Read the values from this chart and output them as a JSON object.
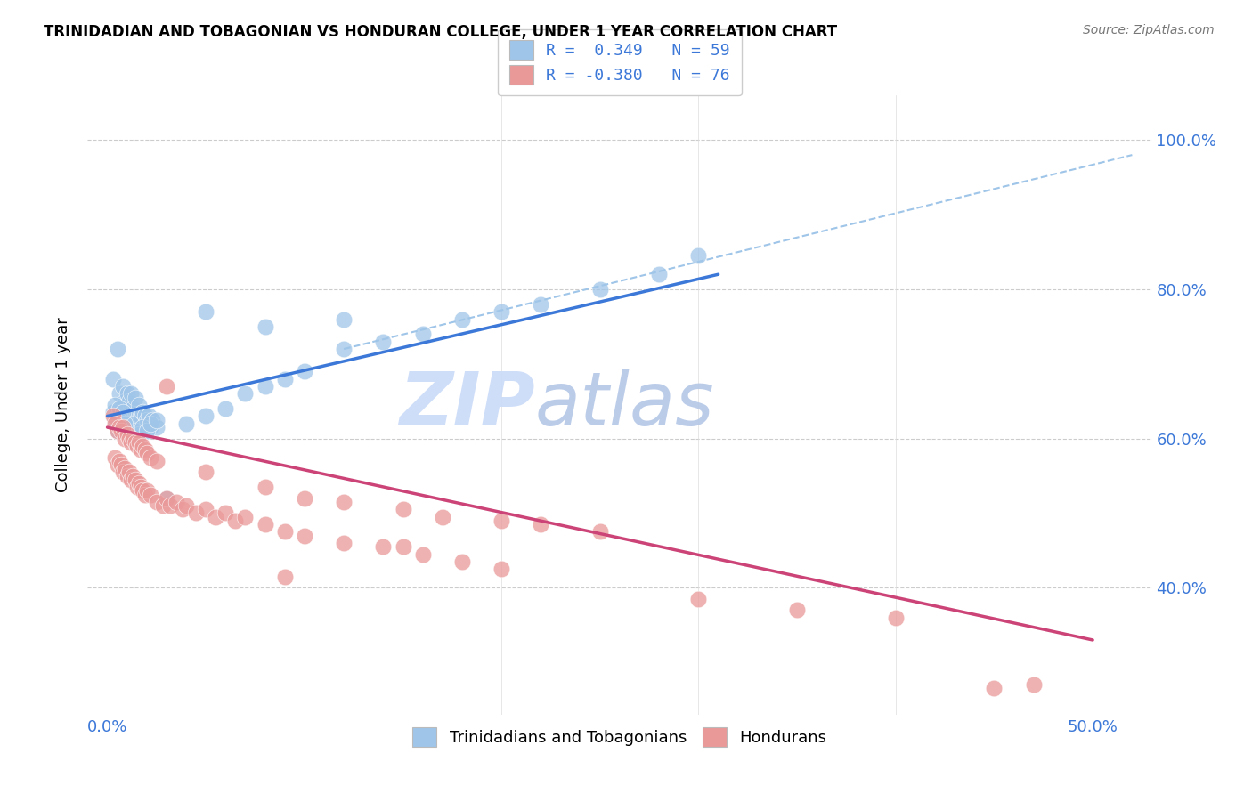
{
  "title": "TRINIDADIAN AND TOBAGONIAN VS HONDURAN COLLEGE, UNDER 1 YEAR CORRELATION CHART",
  "source": "Source: ZipAtlas.com",
  "x_tick_vals": [
    0.0,
    0.1,
    0.2,
    0.3,
    0.4,
    0.5
  ],
  "x_tick_labels": [
    "0.0%",
    "",
    "",
    "",
    "",
    "50.0%"
  ],
  "y_tick_vals": [
    0.4,
    0.6,
    0.8,
    1.0
  ],
  "y_tick_labels": [
    "40.0%",
    "60.0%",
    "80.0%",
    "100.0%"
  ],
  "ylabel_label": "College, Under 1 year",
  "legend_label1": "Trinidadians and Tobagonians",
  "legend_label2": "Hondurans",
  "R1": "0.349",
  "N1": "59",
  "R2": "-0.380",
  "N2": "76",
  "blue_color": "#9fc5e8",
  "pink_color": "#ea9999",
  "blue_line_color": "#3c78d8",
  "pink_line_color": "#cc4477",
  "dashed_line_color": "#9fc5e8",
  "watermark_zip_color": "#c9daf8",
  "watermark_atlas_color": "#b4c7e7",
  "blue_scatter": [
    [
      0.003,
      0.68
    ],
    [
      0.005,
      0.72
    ],
    [
      0.006,
      0.66
    ],
    [
      0.007,
      0.64
    ],
    [
      0.008,
      0.67
    ],
    [
      0.009,
      0.65
    ],
    [
      0.01,
      0.66
    ],
    [
      0.011,
      0.65
    ],
    [
      0.012,
      0.66
    ],
    [
      0.013,
      0.64
    ],
    [
      0.014,
      0.655
    ],
    [
      0.015,
      0.63
    ],
    [
      0.016,
      0.645
    ],
    [
      0.017,
      0.63
    ],
    [
      0.018,
      0.635
    ],
    [
      0.019,
      0.63
    ],
    [
      0.02,
      0.625
    ],
    [
      0.021,
      0.63
    ],
    [
      0.022,
      0.615
    ],
    [
      0.023,
      0.625
    ],
    [
      0.025,
      0.615
    ],
    [
      0.006,
      0.63
    ],
    [
      0.008,
      0.62
    ],
    [
      0.01,
      0.615
    ],
    [
      0.012,
      0.62
    ],
    [
      0.014,
      0.61
    ],
    [
      0.016,
      0.605
    ],
    [
      0.018,
      0.615
    ],
    [
      0.02,
      0.61
    ],
    [
      0.022,
      0.62
    ],
    [
      0.004,
      0.625
    ],
    [
      0.003,
      0.635
    ],
    [
      0.005,
      0.61
    ],
    [
      0.007,
      0.615
    ],
    [
      0.009,
      0.62
    ],
    [
      0.004,
      0.645
    ],
    [
      0.006,
      0.64
    ],
    [
      0.008,
      0.635
    ],
    [
      0.025,
      0.625
    ],
    [
      0.04,
      0.62
    ],
    [
      0.05,
      0.63
    ],
    [
      0.06,
      0.64
    ],
    [
      0.07,
      0.66
    ],
    [
      0.08,
      0.67
    ],
    [
      0.09,
      0.68
    ],
    [
      0.1,
      0.69
    ],
    [
      0.12,
      0.72
    ],
    [
      0.14,
      0.73
    ],
    [
      0.16,
      0.74
    ],
    [
      0.18,
      0.76
    ],
    [
      0.2,
      0.77
    ],
    [
      0.22,
      0.78
    ],
    [
      0.25,
      0.8
    ],
    [
      0.28,
      0.82
    ],
    [
      0.3,
      0.845
    ],
    [
      0.05,
      0.77
    ],
    [
      0.08,
      0.75
    ],
    [
      0.12,
      0.76
    ],
    [
      0.03,
      0.52
    ]
  ],
  "pink_scatter": [
    [
      0.003,
      0.63
    ],
    [
      0.004,
      0.62
    ],
    [
      0.005,
      0.61
    ],
    [
      0.006,
      0.615
    ],
    [
      0.007,
      0.61
    ],
    [
      0.008,
      0.615
    ],
    [
      0.009,
      0.6
    ],
    [
      0.01,
      0.605
    ],
    [
      0.011,
      0.6
    ],
    [
      0.012,
      0.595
    ],
    [
      0.013,
      0.6
    ],
    [
      0.014,
      0.595
    ],
    [
      0.015,
      0.59
    ],
    [
      0.016,
      0.595
    ],
    [
      0.017,
      0.585
    ],
    [
      0.018,
      0.59
    ],
    [
      0.019,
      0.585
    ],
    [
      0.02,
      0.58
    ],
    [
      0.022,
      0.575
    ],
    [
      0.025,
      0.57
    ],
    [
      0.004,
      0.575
    ],
    [
      0.005,
      0.565
    ],
    [
      0.006,
      0.57
    ],
    [
      0.007,
      0.565
    ],
    [
      0.008,
      0.555
    ],
    [
      0.009,
      0.56
    ],
    [
      0.01,
      0.55
    ],
    [
      0.011,
      0.555
    ],
    [
      0.012,
      0.545
    ],
    [
      0.013,
      0.55
    ],
    [
      0.014,
      0.545
    ],
    [
      0.015,
      0.535
    ],
    [
      0.016,
      0.54
    ],
    [
      0.017,
      0.535
    ],
    [
      0.018,
      0.53
    ],
    [
      0.019,
      0.525
    ],
    [
      0.02,
      0.53
    ],
    [
      0.022,
      0.525
    ],
    [
      0.025,
      0.515
    ],
    [
      0.028,
      0.51
    ],
    [
      0.03,
      0.52
    ],
    [
      0.032,
      0.51
    ],
    [
      0.035,
      0.515
    ],
    [
      0.038,
      0.505
    ],
    [
      0.04,
      0.51
    ],
    [
      0.045,
      0.5
    ],
    [
      0.05,
      0.505
    ],
    [
      0.055,
      0.495
    ],
    [
      0.06,
      0.5
    ],
    [
      0.065,
      0.49
    ],
    [
      0.07,
      0.495
    ],
    [
      0.08,
      0.485
    ],
    [
      0.09,
      0.475
    ],
    [
      0.1,
      0.47
    ],
    [
      0.12,
      0.46
    ],
    [
      0.14,
      0.455
    ],
    [
      0.15,
      0.455
    ],
    [
      0.16,
      0.445
    ],
    [
      0.18,
      0.435
    ],
    [
      0.2,
      0.425
    ],
    [
      0.05,
      0.555
    ],
    [
      0.08,
      0.535
    ],
    [
      0.1,
      0.52
    ],
    [
      0.12,
      0.515
    ],
    [
      0.15,
      0.505
    ],
    [
      0.17,
      0.495
    ],
    [
      0.2,
      0.49
    ],
    [
      0.22,
      0.485
    ],
    [
      0.25,
      0.475
    ],
    [
      0.03,
      0.67
    ],
    [
      0.09,
      0.415
    ],
    [
      0.3,
      0.385
    ],
    [
      0.35,
      0.37
    ],
    [
      0.4,
      0.36
    ],
    [
      0.45,
      0.265
    ],
    [
      0.47,
      0.27
    ]
  ],
  "x_min": -0.01,
  "x_max": 0.53,
  "y_min": 0.23,
  "y_max": 1.06,
  "blue_trend_x": [
    0.0,
    0.31
  ],
  "blue_trend_y": [
    0.63,
    0.82
  ],
  "pink_trend_x": [
    0.0,
    0.5
  ],
  "pink_trend_y": [
    0.615,
    0.33
  ],
  "dashed_trend_x": [
    0.12,
    0.52
  ],
  "dashed_trend_y": [
    0.72,
    0.98
  ]
}
